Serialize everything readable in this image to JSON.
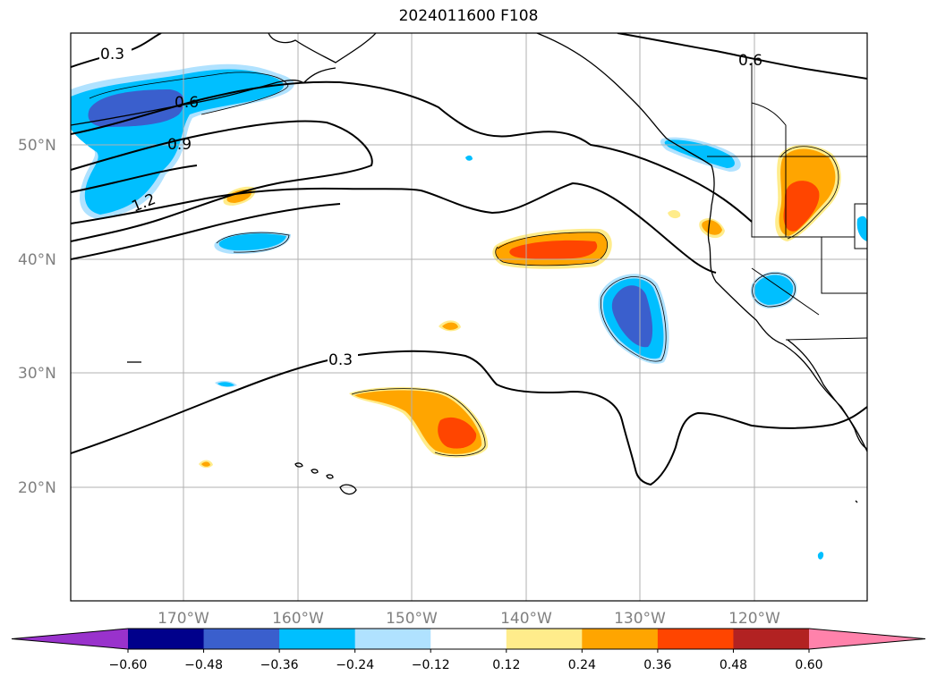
{
  "title": "2024011600 F108",
  "lat_labels": [
    "50°N",
    "40°N",
    "30°N",
    "20°N"
  ],
  "lon_labels": [
    "170°W",
    "160°W",
    "150°W",
    "140°W",
    "130°W",
    "120°W"
  ],
  "contour_labels": [
    "0.3",
    "0.6",
    "0.6",
    "0.9",
    "1.2",
    "0.3"
  ],
  "colorbar": {
    "extend": "both",
    "colors": [
      "#9932cc",
      "#00008b",
      "#3a5fcd",
      "#00bfff",
      "#b0e2ff",
      "#ffffff",
      "#ffec8b",
      "#ffa500",
      "#ff4500",
      "#b22222",
      "#ff82ab"
    ],
    "tick_labels": [
      "−0.60",
      "−0.48",
      "−0.36",
      "−0.24",
      "−0.12",
      "0.12",
      "0.24",
      "0.36",
      "0.48",
      "0.60"
    ]
  }
}
